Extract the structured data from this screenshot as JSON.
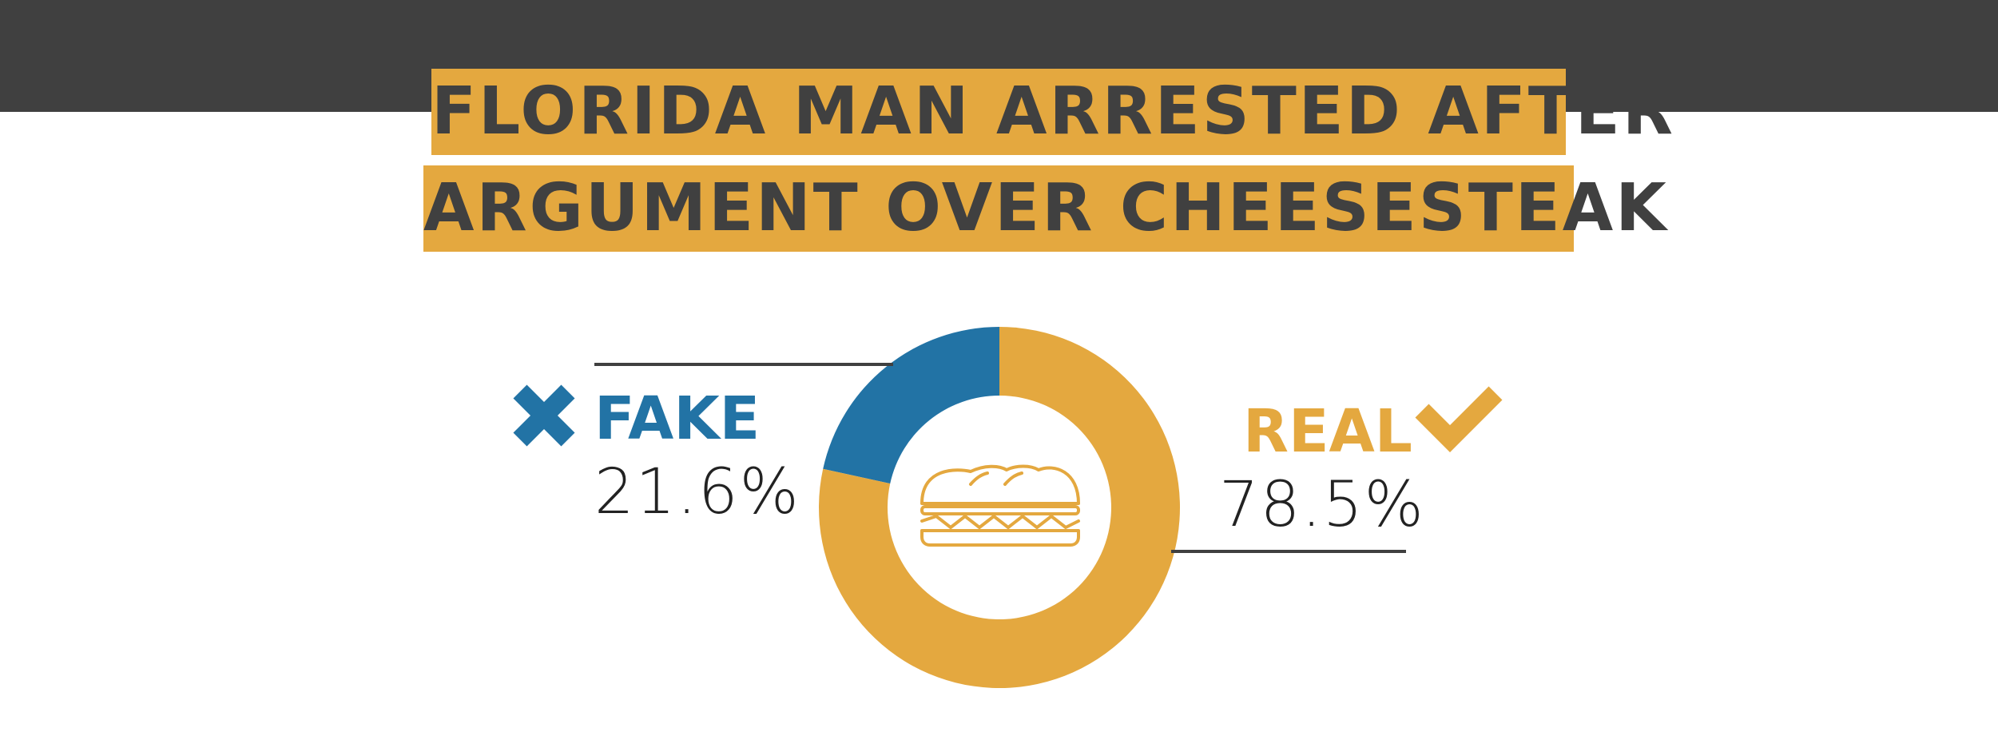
{
  "header": {
    "line1": "FLORIDA MAN ARRESTED AFTER",
    "line2": "ARGUMENT OVER CHEESESTEAK"
  },
  "colors": {
    "accent_gold": "#e4a83f",
    "accent_blue": "#2273a5",
    "dark": "#404040"
  },
  "chart_data": {
    "type": "pie",
    "title": "",
    "slices": [
      {
        "label": "FAKE",
        "display": "21.6%",
        "value": 21.6,
        "color": "#2273a5",
        "icon": "x-icon"
      },
      {
        "label": "REAL",
        "display": "78.5%",
        "value": 78.5,
        "color": "#e4a83f",
        "icon": "check-icon"
      }
    ],
    "center_icon": "sandwich-icon",
    "legend": "none"
  }
}
